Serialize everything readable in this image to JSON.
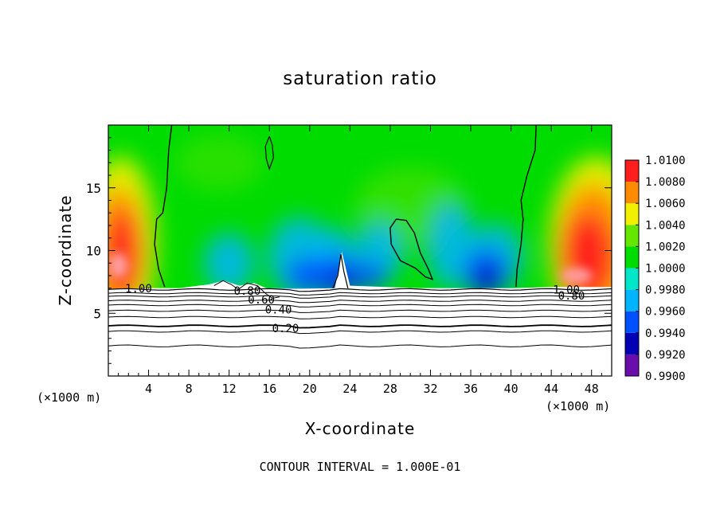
{
  "chart_data": {
    "type": "heatmap",
    "title": "saturation ratio",
    "xlabel": "X-coordinate",
    "ylabel": "Z-coordinate",
    "x_unit": "(×1000 m)",
    "xlim": [
      0,
      50
    ],
    "ylim": [
      0,
      20
    ],
    "x_ticks": [
      4,
      8,
      12,
      16,
      20,
      24,
      28,
      32,
      36,
      40,
      44,
      48
    ],
    "y_ticks": [
      5,
      10,
      15
    ],
    "colorbar": {
      "levels": [
        "0.9900",
        "0.9920",
        "0.9940",
        "0.9960",
        "0.9980",
        "1.0000",
        "1.0020",
        "1.0040",
        "1.0060",
        "1.0080",
        "1.0100"
      ],
      "colors": [
        "#6a0dad",
        "#0000b4",
        "#0050ff",
        "#00b4ff",
        "#00e6c8",
        "#00dc00",
        "#64e600",
        "#f0f000",
        "#ff8c00",
        "#ff1e1e",
        "#ff9ea0"
      ]
    },
    "contour_labels": [
      {
        "text": "1.00",
        "x": 3.0,
        "z": 7.0
      },
      {
        "text": "0.80",
        "x": 13.8,
        "z": 6.8
      },
      {
        "text": "0.60",
        "x": 15.2,
        "z": 6.1
      },
      {
        "text": "0.40",
        "x": 16.9,
        "z": 5.3
      },
      {
        "text": "0.20",
        "x": 17.6,
        "z": 3.8
      },
      {
        "text": "1.00",
        "x": 45.5,
        "z": 6.9
      },
      {
        "text": "0.80",
        "x": 46.0,
        "z": 6.4
      }
    ],
    "contour_interval": "CONTOUR INTERVAL = 1.000E-01"
  }
}
